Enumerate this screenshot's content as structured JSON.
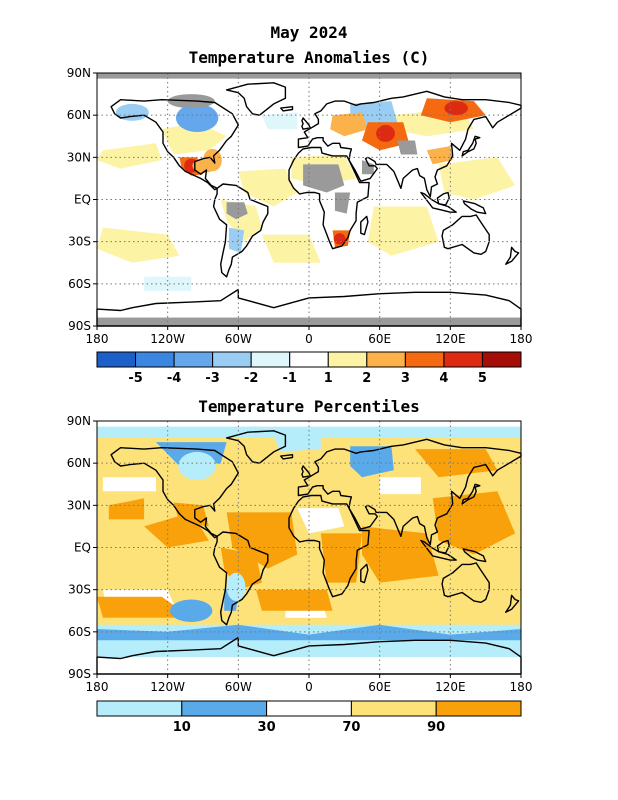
{
  "figure": {
    "month_title": "May 2024",
    "panel1_title": "Temperature Anomalies (C)",
    "panel2_title": "Temperature Percentiles"
  },
  "axes": {
    "lon_labels": [
      "180",
      "120W",
      "60W",
      "0",
      "60E",
      "120E",
      "180"
    ],
    "lat_labels": [
      "90N",
      "60N",
      "30N",
      "EQ",
      "30S",
      "60S",
      "90S"
    ]
  },
  "anomaly_colorbar": {
    "labels": [
      "-5",
      "-4",
      "-3",
      "-2",
      "-1",
      "1",
      "2",
      "3",
      "4",
      "5"
    ],
    "colors": [
      "#1c5fc8",
      "#3b86e0",
      "#64a7ec",
      "#9acdf3",
      "#dff6fb",
      "#ffffff",
      "#fdf3a5",
      "#fcb24a",
      "#f56a10",
      "#dd2a12",
      "#a50d08"
    ]
  },
  "percentile_colorbar": {
    "labels": [
      "10",
      "30",
      "70",
      "90"
    ],
    "colors": [
      "#b5eefa",
      "#5aaaea",
      "#ffffff",
      "#fde27a",
      "#f9a10a"
    ]
  },
  "map_colors": {
    "missing": "#9a9a9a",
    "land_outline": "#000000",
    "grid": "#777777"
  }
}
